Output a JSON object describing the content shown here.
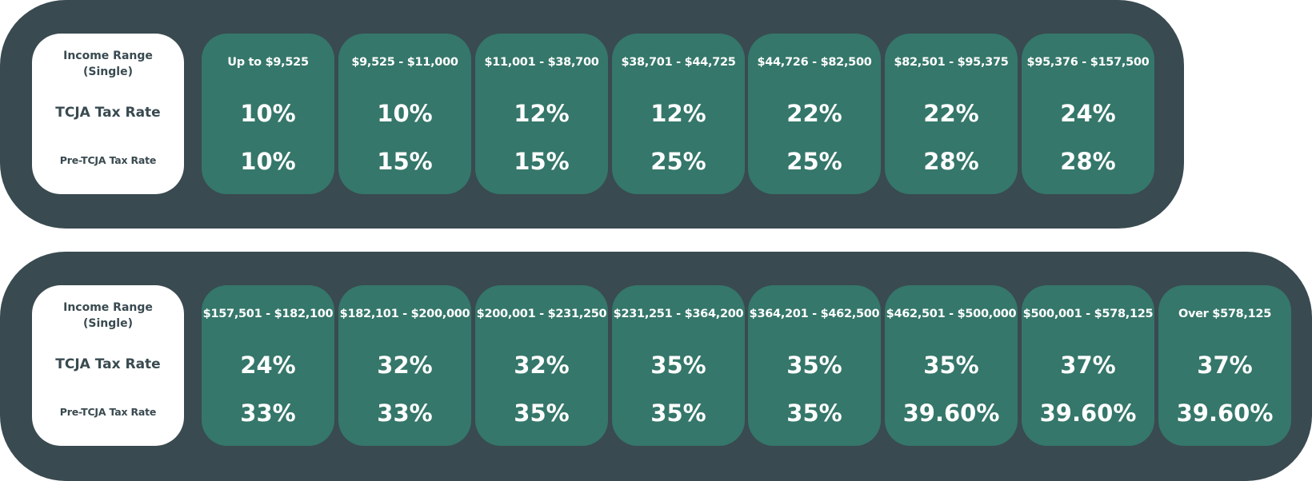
{
  "labels": {
    "income_range": "Income Range (Single)",
    "tcja_rate": "TCJA Tax Rate",
    "pre_tcja_rate": "Pre-TCJA Tax Rate"
  },
  "colors": {
    "panel_bg": "#394a50",
    "bracket_bg": "#35776a",
    "label_bg": "#ffffff"
  },
  "table_1": {
    "brackets": [
      {
        "range": "Up to $9,525",
        "tcja": "10%",
        "pre_tcja": "10%"
      },
      {
        "range": "$9,525 - $11,000",
        "tcja": "10%",
        "pre_tcja": "15%"
      },
      {
        "range": "$11,001 - $38,700",
        "tcja": "12%",
        "pre_tcja": "15%"
      },
      {
        "range": "$38,701 - $44,725",
        "tcja": "12%",
        "pre_tcja": "25%"
      },
      {
        "range": "$44,726 - $82,500",
        "tcja": "22%",
        "pre_tcja": "25%"
      },
      {
        "range": "$82,501 - $95,375",
        "tcja": "22%",
        "pre_tcja": "28%"
      },
      {
        "range": "$95,376 - $157,500",
        "tcja": "24%",
        "pre_tcja": "28%"
      }
    ]
  },
  "table_2": {
    "brackets": [
      {
        "range": "$157,501 - $182,100",
        "tcja": "24%",
        "pre_tcja": "33%"
      },
      {
        "range": "$182,101 - $200,000",
        "tcja": "32%",
        "pre_tcja": "33%"
      },
      {
        "range": "$200,001 - $231,250",
        "tcja": "32%",
        "pre_tcja": "35%"
      },
      {
        "range": "$231,251 - $364,200",
        "tcja": "35%",
        "pre_tcja": "35%"
      },
      {
        "range": "$364,201 - $462,500",
        "tcja": "35%",
        "pre_tcja": "35%"
      },
      {
        "range": "$462,501 - $500,000",
        "tcja": "35%",
        "pre_tcja": "39.60%"
      },
      {
        "range": "$500,001 - $578,125",
        "tcja": "37%",
        "pre_tcja": "39.60%"
      },
      {
        "range": "Over $578,125",
        "tcja": "37%",
        "pre_tcja": "39.60%"
      }
    ]
  }
}
